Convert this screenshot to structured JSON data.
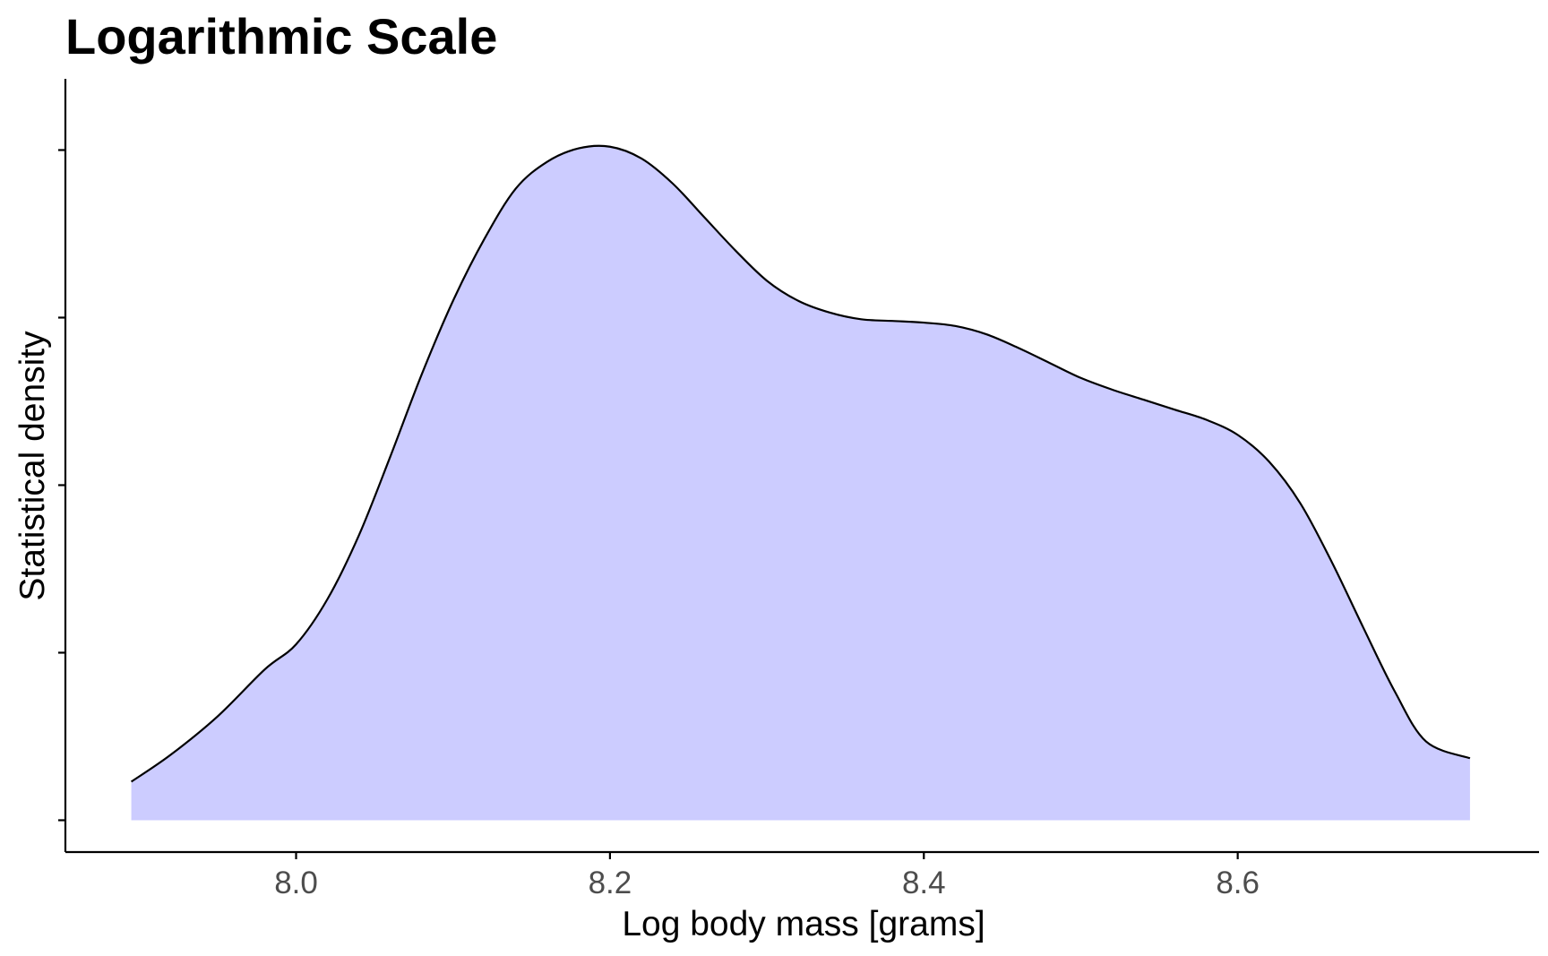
{
  "chart_data": {
    "type": "area",
    "title": "Logarithmic Scale",
    "xlabel": "Log body mass [grams]",
    "ylabel": "Statistical density",
    "x_ticks": [
      8.0,
      8.2,
      8.4,
      8.6
    ],
    "x_tick_labels": [
      "8.0",
      "8.2",
      "8.4",
      "8.6"
    ],
    "y_ticks": [
      0,
      1,
      2,
      3,
      4
    ],
    "y_tick_labels": [],
    "xlim": [
      7.853,
      8.792
    ],
    "ylim": [
      -0.19,
      4.425
    ],
    "grid": false,
    "legend": "none",
    "fill_color": "#ccccff",
    "line_color": "#000000",
    "x": [
      7.895,
      7.92,
      7.95,
      7.98,
      8.0,
      8.02,
      8.04,
      8.06,
      8.08,
      8.1,
      8.12,
      8.14,
      8.16,
      8.18,
      8.2,
      8.22,
      8.24,
      8.26,
      8.28,
      8.3,
      8.32,
      8.34,
      8.36,
      8.38,
      8.4,
      8.42,
      8.44,
      8.46,
      8.48,
      8.5,
      8.52,
      8.54,
      8.56,
      8.58,
      8.6,
      8.62,
      8.64,
      8.66,
      8.68,
      8.7,
      8.72,
      8.748
    ],
    "y": [
      0.23,
      0.39,
      0.62,
      0.9,
      1.05,
      1.32,
      1.7,
      2.17,
      2.66,
      3.1,
      3.47,
      3.77,
      3.93,
      4.01,
      4.02,
      3.95,
      3.8,
      3.6,
      3.4,
      3.22,
      3.1,
      3.03,
      2.99,
      2.98,
      2.97,
      2.95,
      2.9,
      2.82,
      2.73,
      2.64,
      2.57,
      2.51,
      2.45,
      2.39,
      2.3,
      2.14,
      1.89,
      1.54,
      1.15,
      0.77,
      0.47,
      0.37
    ]
  }
}
